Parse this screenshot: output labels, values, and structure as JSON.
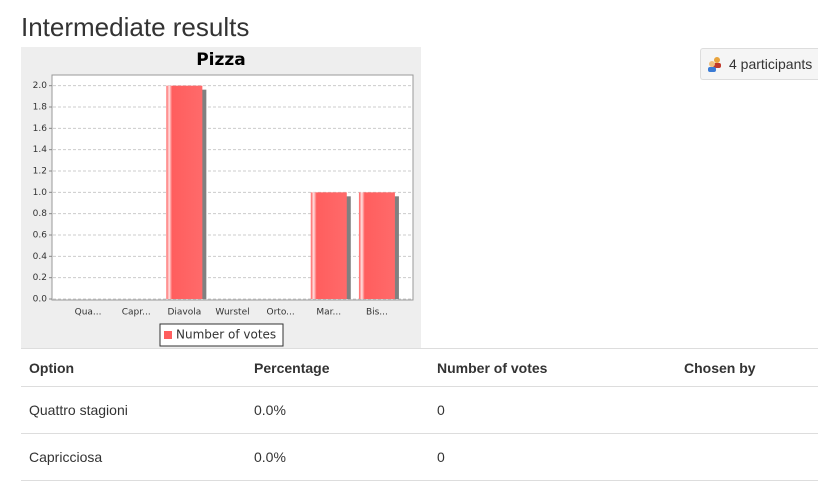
{
  "header": {
    "title": "Intermediate results"
  },
  "participants_button": "4 participants",
  "chart_data": {
    "type": "bar",
    "title": "Pizza",
    "categories": [
      "Qua...",
      "Capr...",
      "Diavola",
      "Wurstel",
      "Orto...",
      "Mar...",
      "Bis..."
    ],
    "series": [
      {
        "name": "Number of votes",
        "color": "#ff5e5e",
        "values": [
          0,
          0,
          2,
          0,
          0,
          1,
          1
        ]
      }
    ],
    "ylim": [
      0,
      2.1
    ],
    "yticks": [
      {
        "value": 0,
        "label": "0.0"
      },
      {
        "value": 0.2,
        "label": "0.2"
      },
      {
        "value": 0.4,
        "label": "0.4"
      },
      {
        "value": 0.6,
        "label": "0.6"
      },
      {
        "value": 0.8,
        "label": "0.8"
      },
      {
        "value": 1,
        "label": "1.0"
      },
      {
        "value": 1.2,
        "label": "1.2"
      },
      {
        "value": 1.4,
        "label": "1.4"
      },
      {
        "value": 1.6,
        "label": "1.6"
      },
      {
        "value": 1.8,
        "label": "1.8"
      },
      {
        "value": 2,
        "label": "2.0"
      }
    ],
    "grid": true
  },
  "table": {
    "headers": [
      "Option",
      "Percentage",
      "Number of votes",
      "Chosen by"
    ],
    "rows": [
      [
        "Quattro stagioni",
        "0.0%",
        0
      ],
      [
        "Capricciosa",
        "0.0%",
        0
      ]
    ]
  }
}
